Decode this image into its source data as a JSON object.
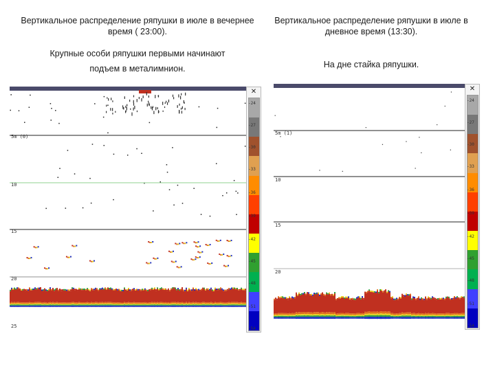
{
  "left": {
    "title": "Вертикальное распределение ряпушки в июле в вечернее время ( 23:00).",
    "note_line1": "Крупные особи ряпушки первыми начинают",
    "note_line2": "подъем в металимнион.",
    "depth_labels": [
      "5m (0)",
      "10",
      "15",
      "20",
      "25"
    ],
    "scale_ticks": [
      "-24",
      "-27",
      "-30",
      "-33",
      "-36",
      "-39",
      "-42",
      "-45",
      "-48",
      "-51",
      "-54"
    ]
  },
  "right": {
    "title": "Вертикальное распределение ряпушки в июле в дневное время (13:30).",
    "note": "На дне стайка ряпушки.",
    "depth_labels": [
      "5m (1)",
      "10",
      "15",
      "20"
    ],
    "scale_ticks": [
      "-24",
      "-27",
      "-30",
      "-33",
      "-36",
      "-39",
      "-42",
      "-45",
      "-48",
      "-51",
      "-54"
    ]
  },
  "scale": {
    "close_glyph": "✕",
    "colors": [
      "#a8a8a8",
      "#787878",
      "#a0522d",
      "#e0a050",
      "#ff8c00",
      "#ff4000",
      "#c00000",
      "#ffff00",
      "#30a030",
      "#00b050",
      "#4040ff",
      "#0000c0"
    ]
  },
  "echo_colors": {
    "surface": "#4a4a6a",
    "seabed_red": "#c03020",
    "seabed_orange": "#e07020",
    "seabed_yellow": "#e8d020",
    "seabed_green": "#30a040",
    "seabed_blue": "#2030c0",
    "thermocline_line": "#8fd08f"
  }
}
